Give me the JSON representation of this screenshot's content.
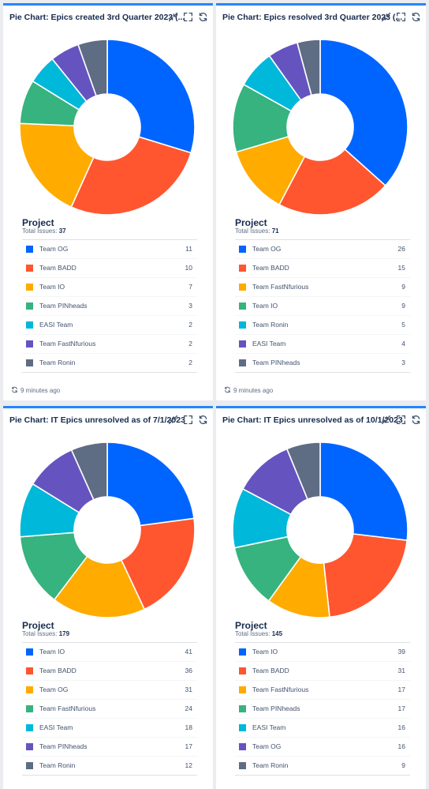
{
  "colors": [
    "#0065ff",
    "#ff5630",
    "#ffab00",
    "#36b37e",
    "#00b8d9",
    "#6554c0",
    "#5e6c84"
  ],
  "common": {
    "project_label": "Project",
    "total_prefix": "Total Issues:",
    "updated": "9 minutes ago"
  },
  "icons": {
    "minimize": "minimize-icon",
    "fullscreen": "fullscreen-icon",
    "refresh": "refresh-icon"
  },
  "chart_data": [
    {
      "type": "pie",
      "title": "Pie Chart: Epics created 3rd Quarter 2023 (...",
      "total": 37,
      "categories": [
        "Team OG",
        "Team BADD",
        "Team IO",
        "Team PINheads",
        "EASI Team",
        "Team FastNfurious",
        "Team Ronin"
      ],
      "values": [
        11,
        10,
        7,
        3,
        2,
        2,
        2
      ]
    },
    {
      "type": "pie",
      "title": "Pie Chart: Epics resolved 3rd Quarter 2023 (...",
      "total": 71,
      "categories": [
        "Team OG",
        "Team BADD",
        "Team FastNfurious",
        "Team IO",
        "Team Ronin",
        "EASI Team",
        "Team PINheads"
      ],
      "values": [
        26,
        15,
        9,
        9,
        5,
        4,
        3
      ]
    },
    {
      "type": "pie",
      "title": "Pie Chart: IT Epics unresolved as of 7/1/2023",
      "total": 179,
      "categories": [
        "Team IO",
        "Team BADD",
        "Team OG",
        "Team FastNfurious",
        "EASI Team",
        "Team PINheads",
        "Team Ronin"
      ],
      "values": [
        41,
        36,
        31,
        24,
        18,
        17,
        12
      ]
    },
    {
      "type": "pie",
      "title": "Pie Chart: IT Epics unresolved as of 10/1/2023",
      "total": 145,
      "categories": [
        "Team IO",
        "Team BADD",
        "Team FastNfurious",
        "Team PINheads",
        "EASI Team",
        "Team OG",
        "Team Ronin"
      ],
      "values": [
        39,
        31,
        17,
        17,
        16,
        16,
        9
      ]
    }
  ]
}
